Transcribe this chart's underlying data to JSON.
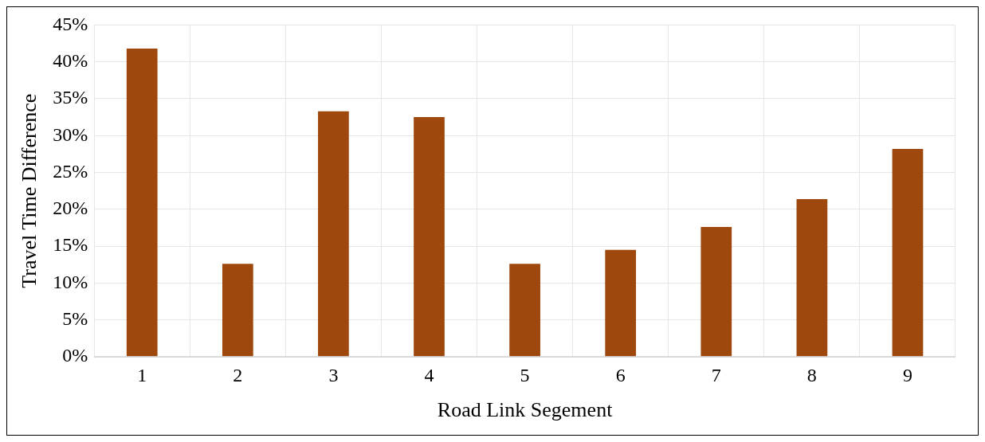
{
  "chart_data": {
    "type": "bar",
    "xlabel": "Road Link Segement",
    "ylabel": "Travel Time Difference",
    "categories": [
      "1",
      "2",
      "3",
      "4",
      "5",
      "6",
      "7",
      "8",
      "9"
    ],
    "values": [
      41.8,
      12.6,
      33.3,
      32.5,
      12.6,
      14.5,
      17.6,
      21.4,
      28.2
    ],
    "color": "#9e480e",
    "ylim": [
      0,
      45
    ],
    "yticks": [
      {
        "value": 0,
        "label": "0%"
      },
      {
        "value": 5,
        "label": "5%"
      },
      {
        "value": 10,
        "label": "10%"
      },
      {
        "value": 15,
        "label": "15%"
      },
      {
        "value": 20,
        "label": "20%"
      },
      {
        "value": 25,
        "label": "25%"
      },
      {
        "value": 30,
        "label": "30%"
      },
      {
        "value": 35,
        "label": "35%"
      },
      {
        "value": 40,
        "label": "40%"
      },
      {
        "value": 45,
        "label": "45%"
      }
    ],
    "grid": true,
    "legend": false
  }
}
